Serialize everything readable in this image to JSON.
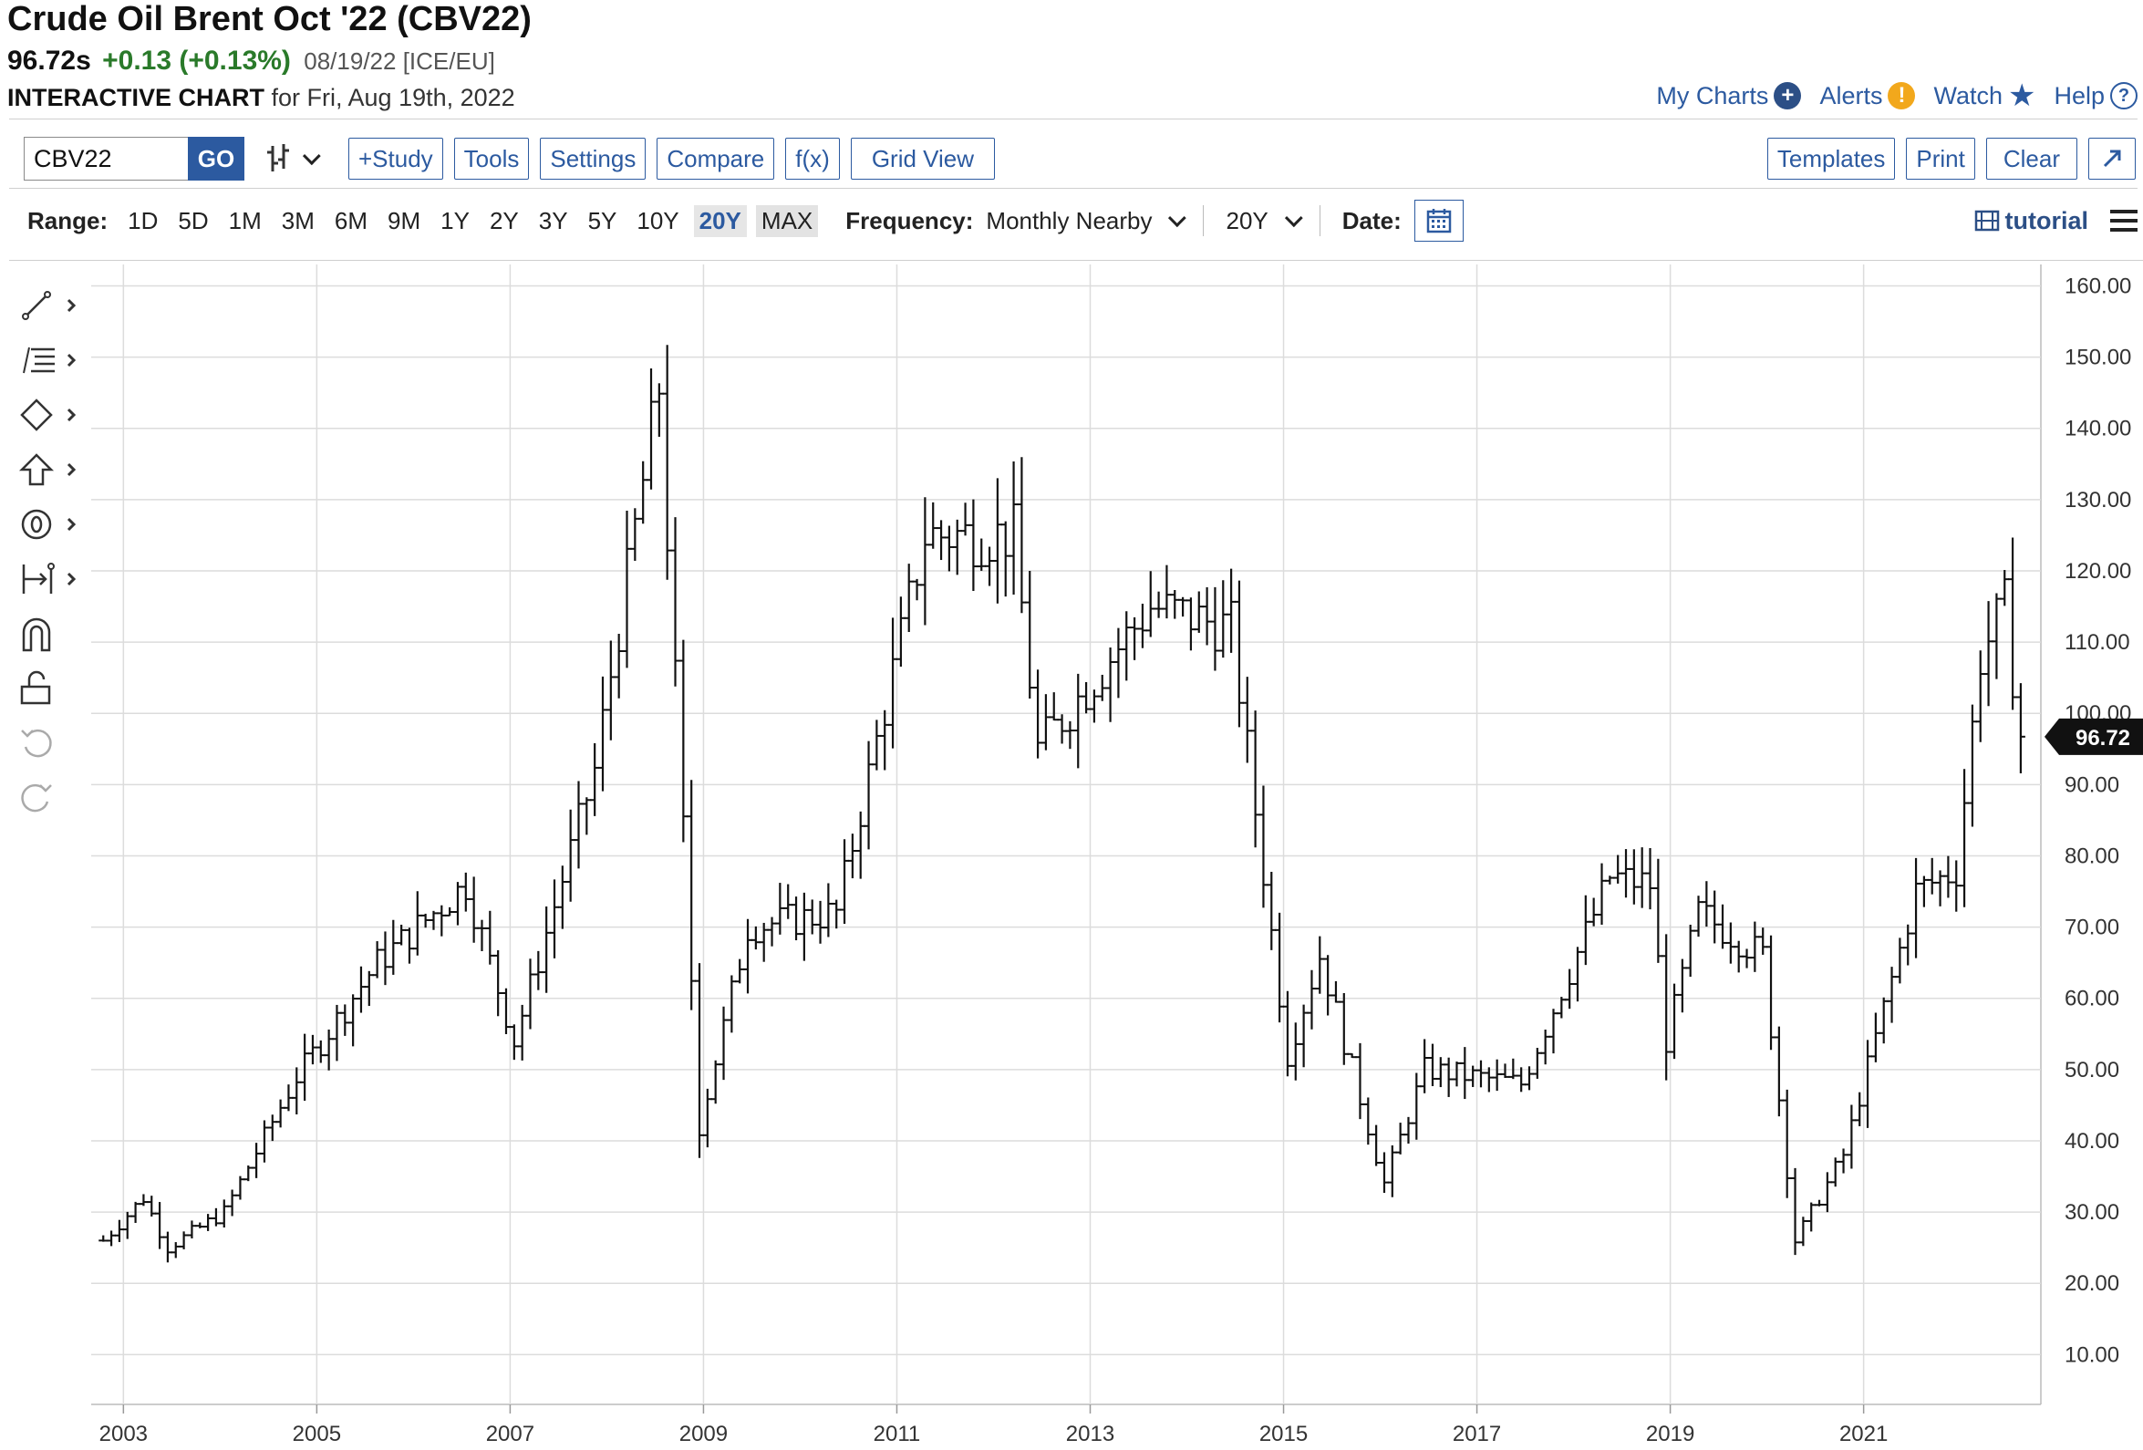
{
  "header": {
    "title": "Crude Oil Brent Oct '22 (CBV22)",
    "last": "96.72s",
    "change": "+0.13 (+0.13%)",
    "date_exchange": "08/19/22 [ICE/EU]",
    "interactive_label": "INTERACTIVE CHART",
    "interactive_for": "for Fri, Aug 19th, 2022"
  },
  "top_links": {
    "my_charts": "My Charts",
    "alerts": "Alerts",
    "watch": "Watch",
    "help": "Help"
  },
  "toolbar": {
    "symbol_value": "CBV22",
    "go_label": "GO",
    "study_label": "+Study",
    "tools_label": "Tools",
    "settings_label": "Settings",
    "compare_label": "Compare",
    "fx_label": "f(x)",
    "gridview_label": "Grid View",
    "templates_label": "Templates",
    "print_label": "Print",
    "clear_label": "Clear",
    "expand_icon": "expand-icon"
  },
  "range_bar": {
    "range_label": "Range:",
    "options": [
      "1D",
      "5D",
      "1M",
      "3M",
      "6M",
      "9M",
      "1Y",
      "2Y",
      "3Y",
      "5Y",
      "10Y",
      "20Y",
      "MAX"
    ],
    "active": "20Y",
    "frequency_label": "Frequency:",
    "frequency_value": "Monthly Nearby",
    "period_value": "20Y",
    "date_label": "Date:",
    "tutorial_label": "tutorial"
  },
  "colors": {
    "accent": "#2c5aa0",
    "positive": "#2a7a2a",
    "alert": "#f2a81c",
    "bars": "#111111"
  },
  "chart_data": {
    "type": "ohlc",
    "frequency": "monthly",
    "x_tick_labels": [
      "2003",
      "2005",
      "2007",
      "2009",
      "2011",
      "2013",
      "2015",
      "2017",
      "2019",
      "2021"
    ],
    "y_tick_labels": [
      "10.00",
      "20.00",
      "30.00",
      "40.00",
      "50.00",
      "60.00",
      "70.00",
      "80.00",
      "90.00",
      "100.00",
      "110.00",
      "120.00",
      "130.00",
      "140.00",
      "150.00",
      "160.00"
    ],
    "ylim": [
      3,
      163
    ],
    "xlim": [
      "2002-09",
      "2022-11"
    ],
    "last_price_label": "96.72",
    "last_price": 96.72,
    "grid": true,
    "key_levels": [
      {
        "date": "2002-10",
        "close": 26
      },
      {
        "date": "2003-03",
        "close": 32
      },
      {
        "date": "2003-06",
        "close": 25
      },
      {
        "date": "2004-01",
        "close": 30
      },
      {
        "date": "2004-10",
        "close": 49
      },
      {
        "date": "2005-08",
        "close": 65
      },
      {
        "date": "2006-07",
        "close": 76
      },
      {
        "date": "2007-01",
        "close": 54
      },
      {
        "date": "2007-11",
        "close": 92
      },
      {
        "date": "2008-07",
        "close": 146
      },
      {
        "date": "2008-12",
        "close": 42
      },
      {
        "date": "2009-06",
        "close": 70
      },
      {
        "date": "2010-05",
        "close": 72
      },
      {
        "date": "2011-04",
        "close": 125
      },
      {
        "date": "2012-03",
        "close": 125
      },
      {
        "date": "2012-06",
        "close": 95
      },
      {
        "date": "2013-08",
        "close": 115
      },
      {
        "date": "2014-06",
        "close": 112
      },
      {
        "date": "2015-01",
        "close": 52
      },
      {
        "date": "2015-05",
        "close": 66
      },
      {
        "date": "2016-01",
        "close": 34
      },
      {
        "date": "2016-06",
        "close": 50
      },
      {
        "date": "2017-06",
        "close": 48
      },
      {
        "date": "2018-05",
        "close": 77
      },
      {
        "date": "2018-10",
        "close": 76
      },
      {
        "date": "2018-12",
        "close": 54
      },
      {
        "date": "2019-04",
        "close": 72
      },
      {
        "date": "2019-12",
        "close": 66
      },
      {
        "date": "2020-04",
        "close": 26
      },
      {
        "date": "2020-10",
        "close": 38
      },
      {
        "date": "2021-07",
        "close": 75
      },
      {
        "date": "2021-12",
        "close": 78
      },
      {
        "date": "2022-03",
        "close": 108
      },
      {
        "date": "2022-06",
        "close": 115
      },
      {
        "date": "2022-08",
        "close": 96.72
      }
    ]
  }
}
